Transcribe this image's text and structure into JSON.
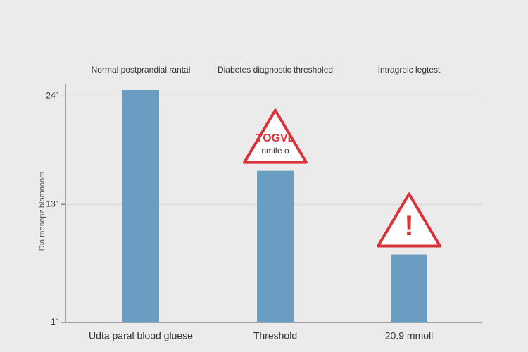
{
  "chart_data": {
    "type": "bar",
    "y_label": "Dia mosepz blomnoom",
    "top_labels": [
      "Normal postprandial rantal",
      "Diabetes diagnostic thresholed",
      "Intragrelc legtest"
    ],
    "categories": [
      "Udta paral blood gluese",
      "Threshold",
      "20.9 mmoll"
    ],
    "values": [
      24.6,
      16.4,
      7.9
    ],
    "color": "#6b9dc2",
    "ylim": [
      1,
      24.6
    ],
    "yticks": [
      {
        "value": 1,
        "label": "1\""
      },
      {
        "value": 13,
        "label": "13\""
      },
      {
        "value": 24,
        "label": "24\""
      }
    ],
    "grid": true,
    "annotations": [
      {
        "category": 1,
        "lines": [
          "TOGVL",
          "nmife o"
        ]
      },
      {
        "category": 2,
        "lines": [
          "!"
        ]
      }
    ],
    "annotation_color": "#d9333a"
  }
}
